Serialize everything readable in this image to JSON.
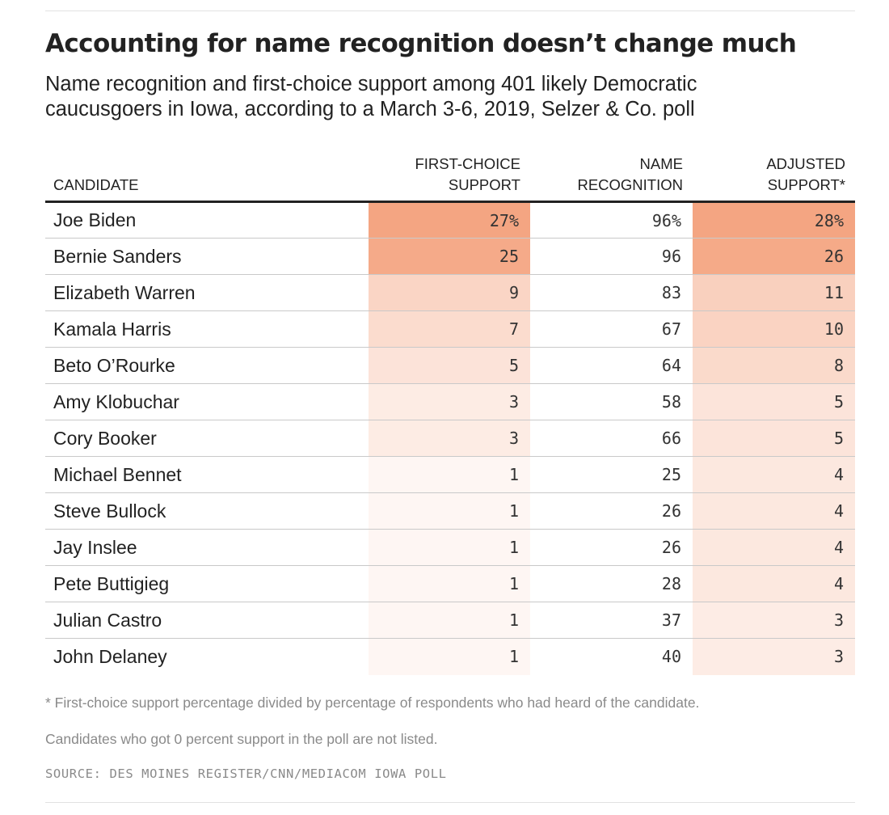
{
  "title": "Accounting for name recognition doesn’t change much",
  "subtitle_line1": "Name recognition and first-choice support among 401 likely Democratic",
  "subtitle_line2": "caucusgoers in Iowa, according to a March 3-6, 2019, Selzer & Co. poll",
  "headers": {
    "candidate": "CANDIDATE",
    "first_choice": [
      "FIRST-CHOICE",
      "SUPPORT"
    ],
    "name_recognition": [
      "NAME",
      "RECOGNITION"
    ],
    "adjusted": [
      "ADJUSTED",
      "SUPPORT*"
    ]
  },
  "colors": {
    "heat_max": "#f4a582",
    "heat_min": "#ffffff",
    "rule": "#c9c9c9",
    "header_rule": "#222222"
  },
  "chart_data": {
    "type": "table",
    "columns": [
      "Candidate",
      "First-choice support",
      "Name recognition",
      "Adjusted support*"
    ],
    "rows": [
      {
        "candidate": "Joe Biden",
        "first_choice": "27%",
        "name_recognition": "96%",
        "adjusted": "28%"
      },
      {
        "candidate": "Bernie Sanders",
        "first_choice": "25",
        "name_recognition": "96",
        "adjusted": "26"
      },
      {
        "candidate": "Elizabeth Warren",
        "first_choice": "9",
        "name_recognition": "83",
        "adjusted": "11"
      },
      {
        "candidate": "Kamala Harris",
        "first_choice": "7",
        "name_recognition": "67",
        "adjusted": "10"
      },
      {
        "candidate": "Beto O’Rourke",
        "first_choice": "5",
        "name_recognition": "64",
        "adjusted": "8"
      },
      {
        "candidate": "Amy Klobuchar",
        "first_choice": "3",
        "name_recognition": "58",
        "adjusted": "5"
      },
      {
        "candidate": "Cory Booker",
        "first_choice": "3",
        "name_recognition": "66",
        "adjusted": "5"
      },
      {
        "candidate": "Michael Bennet",
        "first_choice": "1",
        "name_recognition": "25",
        "adjusted": "4"
      },
      {
        "candidate": "Steve Bullock",
        "first_choice": "1",
        "name_recognition": "26",
        "adjusted": "4"
      },
      {
        "candidate": "Jay Inslee",
        "first_choice": "1",
        "name_recognition": "26",
        "adjusted": "4"
      },
      {
        "candidate": "Pete Buttigieg",
        "first_choice": "1",
        "name_recognition": "28",
        "adjusted": "4"
      },
      {
        "candidate": "Julian Castro",
        "first_choice": "1",
        "name_recognition": "37",
        "adjusted": "3"
      },
      {
        "candidate": "John Delaney",
        "first_choice": "1",
        "name_recognition": "40",
        "adjusted": "3"
      }
    ],
    "heatmap_columns": [
      "first_choice",
      "adjusted"
    ]
  },
  "footnote1": "* First-choice support percentage divided by percentage of respondents who had heard of the candidate.",
  "footnote2": "Candidates who got 0 percent support in the poll are not listed.",
  "source": "SOURCE: DES MOINES REGISTER/CNN/MEDIACOM IOWA POLL"
}
